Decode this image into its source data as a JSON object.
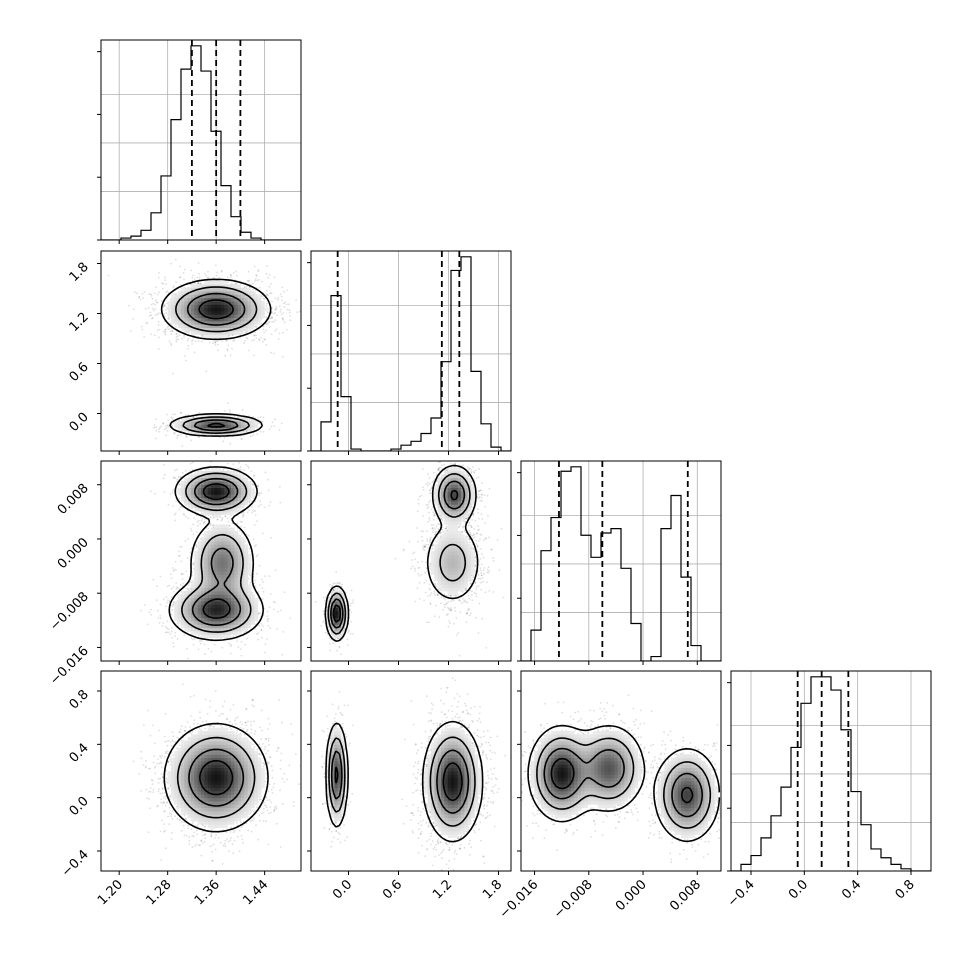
{
  "chart_data": {
    "type": "corner",
    "title": "",
    "parameters": [
      {
        "range": [
          1.17,
          1.5
        ],
        "ticks": [
          1.2,
          1.28,
          1.36,
          1.44
        ],
        "tick_labels": [
          "1.20",
          "1.28",
          "1.36",
          "1.44"
        ]
      },
      {
        "range": [
          -0.45,
          1.95
        ],
        "ticks": [
          0.0,
          0.6,
          1.2,
          1.8
        ],
        "tick_labels": [
          "0.0",
          "0.6",
          "1.2",
          "1.8"
        ]
      },
      {
        "range": [
          -0.018,
          0.0115
        ],
        "ticks": [
          -0.016,
          -0.008,
          0.0,
          0.008
        ],
        "tick_labels": [
          "−0.016",
          "−0.008",
          "0.000",
          "0.008"
        ]
      },
      {
        "range": [
          -0.55,
          0.95
        ],
        "ticks": [
          -0.4,
          0.0,
          0.4,
          0.8
        ],
        "tick_labels": [
          "−0.4",
          "0.0",
          "0.4",
          "0.8"
        ]
      }
    ],
    "histograms": [
      {
        "edges_start": 1.17,
        "bin_width": 0.0165,
        "counts": [
          0,
          0,
          1,
          2,
          5,
          14,
          33,
          62,
          88,
          100,
          87,
          56,
          28,
          12,
          4,
          1,
          0,
          0,
          0,
          0
        ],
        "quantiles": [
          1.32,
          1.36,
          1.4
        ]
      },
      {
        "edges_start": -0.45,
        "bin_width": 0.12,
        "counts": [
          0,
          15,
          80,
          28,
          1,
          0,
          0,
          0,
          1,
          3,
          5,
          9,
          17,
          46,
          93,
          100,
          41,
          14,
          2,
          0
        ],
        "quantiles": [
          -0.13,
          1.12,
          1.33
        ]
      },
      {
        "edges_start": -0.018,
        "bin_width": 0.001475,
        "counts": [
          0,
          14,
          50,
          65,
          86,
          88,
          57,
          47,
          58,
          60,
          42,
          17,
          0,
          2,
          60,
          75,
          38,
          7,
          0,
          0
        ],
        "quantiles": [
          -0.0124,
          -0.006,
          0.0066
        ]
      },
      {
        "edges_start": -0.55,
        "bin_width": 0.075,
        "counts": [
          0,
          3,
          7,
          15,
          25,
          38,
          56,
          76,
          88,
          88,
          82,
          64,
          36,
          21,
          10,
          6,
          3,
          1,
          0,
          0
        ],
        "quantiles": [
          -0.05,
          0.13,
          0.33
        ]
      }
    ],
    "pair_density_modes": [
      {
        "x_param": 0,
        "y_param": 1,
        "modes": [
          {
            "x": 1.36,
            "y": 1.25,
            "sx": 0.04,
            "sy": 0.16,
            "w": 0.78
          },
          {
            "x": 1.36,
            "y": -0.14,
            "sx": 0.035,
            "sy": 0.06,
            "w": 0.22
          }
        ]
      },
      {
        "x_param": 0,
        "y_param": 2,
        "modes": [
          {
            "x": 1.36,
            "y": 0.007,
            "sx": 0.03,
            "sy": 0.0016,
            "w": 0.3
          },
          {
            "x": 1.37,
            "y": -0.0035,
            "sx": 0.025,
            "sy": 0.003,
            "w": 0.3
          },
          {
            "x": 1.36,
            "y": -0.0105,
            "sx": 0.035,
            "sy": 0.002,
            "w": 0.4
          }
        ]
      },
      {
        "x_param": 0,
        "y_param": 3,
        "modes": [
          {
            "x": 1.36,
            "y": 0.15,
            "sx": 0.038,
            "sy": 0.18,
            "w": 1.0
          }
        ]
      },
      {
        "x_param": 1,
        "y_param": 2,
        "modes": [
          {
            "x": -0.14,
            "y": -0.011,
            "sx": 0.06,
            "sy": 0.0018,
            "w": 0.22
          },
          {
            "x": 1.25,
            "y": -0.0035,
            "sx": 0.17,
            "sy": 0.003,
            "w": 0.38
          },
          {
            "x": 1.27,
            "y": 0.0065,
            "sx": 0.12,
            "sy": 0.002,
            "w": 0.4
          }
        ]
      },
      {
        "x_param": 1,
        "y_param": 3,
        "modes": [
          {
            "x": -0.14,
            "y": 0.17,
            "sx": 0.06,
            "sy": 0.18,
            "w": 0.22
          },
          {
            "x": 1.25,
            "y": 0.12,
            "sx": 0.16,
            "sy": 0.2,
            "w": 0.78
          }
        ]
      },
      {
        "x_param": 2,
        "y_param": 3,
        "modes": [
          {
            "x": -0.012,
            "y": 0.18,
            "sx": 0.0022,
            "sy": 0.16,
            "w": 0.38
          },
          {
            "x": -0.005,
            "y": 0.22,
            "sx": 0.0024,
            "sy": 0.15,
            "w": 0.3
          },
          {
            "x": 0.0065,
            "y": 0.02,
            "sx": 0.0022,
            "sy": 0.16,
            "w": 0.32
          }
        ]
      }
    ],
    "grid": true,
    "legend": "none"
  }
}
